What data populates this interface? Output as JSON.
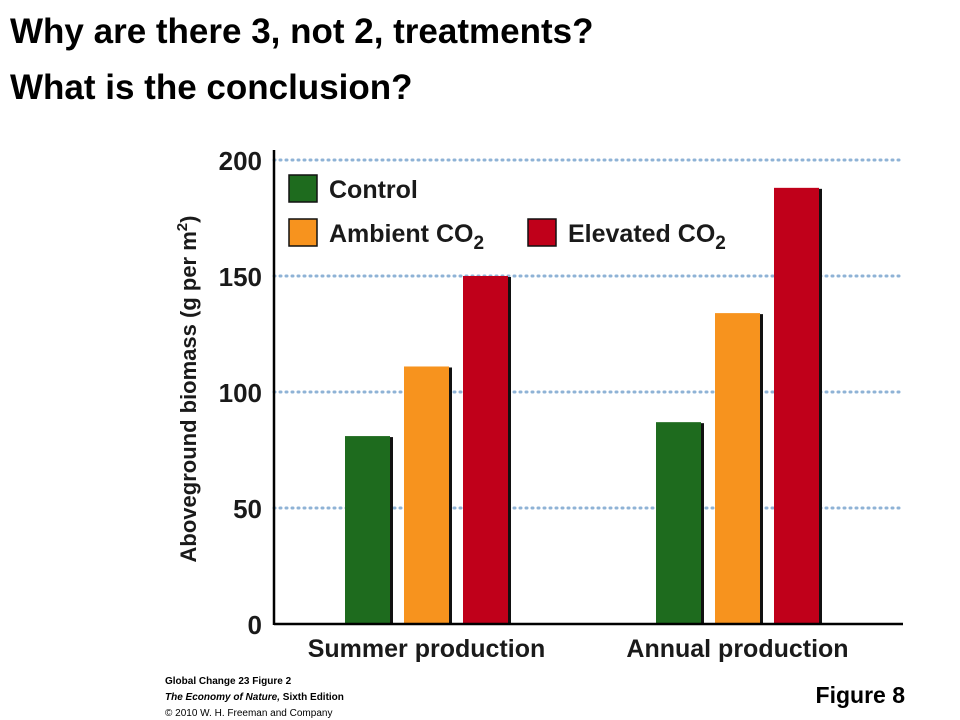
{
  "headline": {
    "line1": "Why are there 3, not 2, treatments?",
    "line2": "What is the conclusion?"
  },
  "chart_data": {
    "type": "bar",
    "categories": [
      "Summer production",
      "Annual production"
    ],
    "series": [
      {
        "name": "Control",
        "color": "#1e6b1e",
        "values": [
          81,
          87
        ]
      },
      {
        "name": "Ambient CO",
        "subscript": "2",
        "color": "#f7931e",
        "values": [
          111,
          134
        ]
      },
      {
        "name": "Elevated CO",
        "subscript": "2",
        "color": "#c0001a",
        "values": [
          150,
          188
        ]
      }
    ],
    "ylabel": "Aboveground biomass (g per m",
    "ylabel_superscript": "2",
    "ylabel_close": ")",
    "ylim": [
      0,
      200
    ],
    "yticks": [
      0,
      50,
      100,
      150,
      200
    ],
    "grid": "dotted horizontal",
    "legend_placement": "top-left"
  },
  "credits": {
    "line1": "Global Change 23 Figure 2",
    "line2_title": "The Economy of Nature,",
    "line2_rest": " Sixth Edition",
    "line3": "© 2010 W. H. Freeman and Company"
  },
  "figure_label": "Figure 8"
}
